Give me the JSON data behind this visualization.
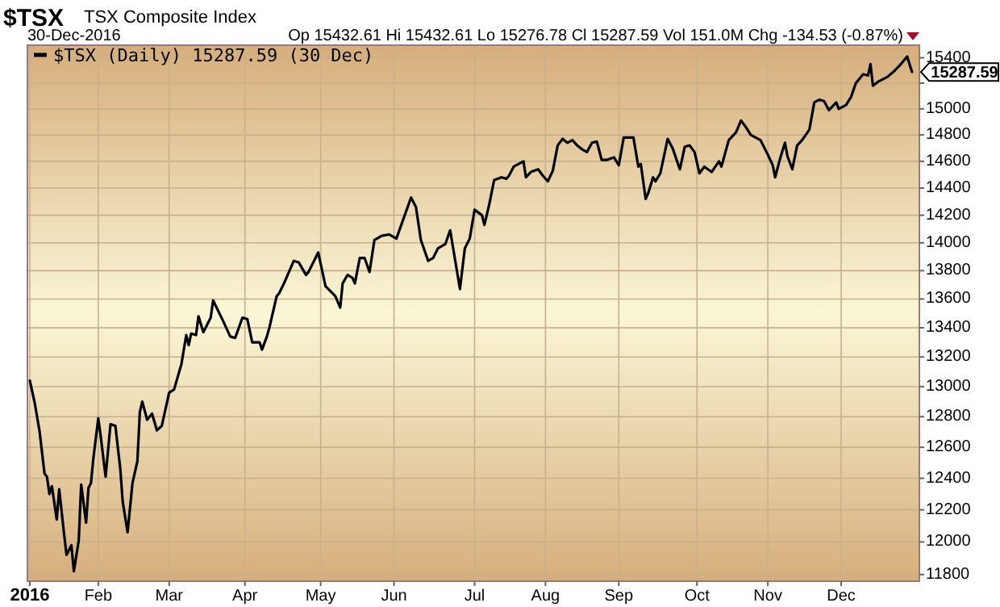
{
  "chart_data": {
    "type": "line",
    "title": "$TSX",
    "subtitle": "TSX Composite Index",
    "annotations": [
      "30-Dec-2016",
      "Op 15432.61 Hi 15432.61 Lo 15276.78 Cl 15287.59 Vol 151.0M Chg -134.53 (-0.87%)",
      {
        "text": "15287.59",
        "x": "2016-12-30",
        "y": 15287.59
      }
    ],
    "x": [
      "2016-01-04",
      "2016-01-06",
      "2016-01-08",
      "2016-01-10",
      "2016-01-11",
      "2016-01-12",
      "2016-01-13",
      "2016-01-15",
      "2016-01-16",
      "2016-01-18",
      "2016-01-19",
      "2016-01-21",
      "2016-01-22",
      "2016-01-24",
      "2016-01-25",
      "2016-01-27",
      "2016-01-28",
      "2016-01-29",
      "2016-01-30",
      "2016-02-01",
      "2016-02-02",
      "2016-02-04",
      "2016-02-06",
      "2016-02-08",
      "2016-02-10",
      "2016-02-11",
      "2016-02-13",
      "2016-02-15",
      "2016-02-17",
      "2016-02-18",
      "2016-02-19",
      "2016-02-21",
      "2016-02-23",
      "2016-02-25",
      "2016-02-27",
      "2016-03-01",
      "2016-03-03",
      "2016-03-06",
      "2016-03-08",
      "2016-03-09",
      "2016-03-10",
      "2016-03-12",
      "2016-03-13",
      "2016-03-15",
      "2016-03-18",
      "2016-03-19",
      "2016-03-23",
      "2016-03-26",
      "2016-03-28",
      "2016-03-31",
      "2016-04-02",
      "2016-04-04",
      "2016-04-07",
      "2016-04-08",
      "2016-04-10",
      "2016-04-11",
      "2016-04-14",
      "2016-04-15",
      "2016-04-17",
      "2016-04-21",
      "2016-04-23",
      "2016-04-26",
      "2016-04-27",
      "2016-05-01",
      "2016-05-04",
      "2016-05-08",
      "2016-05-10",
      "2016-05-11",
      "2016-05-13",
      "2016-05-15",
      "2016-05-16",
      "2016-05-18",
      "2016-05-20",
      "2016-05-22",
      "2016-05-24",
      "2016-05-27",
      "2016-05-30",
      "2016-06-02",
      "2016-06-05",
      "2016-06-08",
      "2016-06-10",
      "2016-06-12",
      "2016-06-15",
      "2016-06-17",
      "2016-06-19",
      "2016-06-22",
      "2016-06-24",
      "2016-06-28",
      "2016-06-30",
      "2016-07-02",
      "2016-07-04",
      "2016-07-07",
      "2016-07-08",
      "2016-07-10",
      "2016-07-12",
      "2016-07-15",
      "2016-07-17",
      "2016-07-18",
      "2016-07-20",
      "2016-07-22",
      "2016-07-24",
      "2016-07-25",
      "2016-07-27",
      "2016-07-30",
      "2016-08-01",
      "2016-08-03",
      "2016-08-05",
      "2016-08-07",
      "2016-08-09",
      "2016-08-11",
      "2016-08-13",
      "2016-08-15",
      "2016-08-17",
      "2016-08-19",
      "2016-08-21",
      "2016-08-23",
      "2016-08-25",
      "2016-08-27",
      "2016-08-30",
      "2016-09-01",
      "2016-09-03",
      "2016-09-05",
      "2016-09-07",
      "2016-09-09",
      "2016-09-10",
      "2016-09-12",
      "2016-09-13",
      "2016-09-15",
      "2016-09-16",
      "2016-09-18",
      "2016-09-21",
      "2016-09-23",
      "2016-09-26",
      "2016-09-28",
      "2016-09-30",
      "2016-10-02",
      "2016-10-04",
      "2016-10-06",
      "2016-10-09",
      "2016-10-12",
      "2016-10-13",
      "2016-10-16",
      "2016-10-19",
      "2016-10-21",
      "2016-10-23",
      "2016-10-25",
      "2016-10-27",
      "2016-10-29",
      "2016-11-01",
      "2016-11-03",
      "2016-11-04",
      "2016-11-06",
      "2016-11-08",
      "2016-11-09",
      "2016-11-11",
      "2016-11-13",
      "2016-11-15",
      "2016-11-18",
      "2016-11-20",
      "2016-11-22",
      "2016-11-24",
      "2016-11-26",
      "2016-11-29",
      "2016-11-30",
      "2016-12-03",
      "2016-12-05",
      "2016-12-07",
      "2016-12-10",
      "2016-12-12",
      "2016-12-13",
      "2016-12-14",
      "2016-12-16",
      "2016-12-20",
      "2016-12-23",
      "2016-12-25",
      "2016-12-28",
      "2016-12-30"
    ],
    "series": [
      {
        "name": "$TSX (Daily) 15287.59 (30 Dec)",
        "color": "#000000",
        "values": [
          13040,
          12890,
          12700,
          12430,
          12410,
          12300,
          12350,
          12140,
          12330,
          12050,
          11920,
          11980,
          11820,
          12010,
          12360,
          12120,
          12340,
          12370,
          12530,
          12790,
          12670,
          12410,
          12750,
          12740,
          12460,
          12250,
          12060,
          12370,
          12510,
          12830,
          12900,
          12780,
          12820,
          12710,
          12740,
          12960,
          12980,
          13150,
          13350,
          13280,
          13360,
          13350,
          13480,
          13370,
          13470,
          13590,
          13450,
          13340,
          13330,
          13470,
          13460,
          13300,
          13300,
          13250,
          13340,
          13400,
          13620,
          13640,
          13710,
          13870,
          13860,
          13770,
          13790,
          13930,
          13690,
          13620,
          13540,
          13710,
          13770,
          13750,
          13710,
          13890,
          13890,
          13790,
          14020,
          14050,
          14060,
          14030,
          14180,
          14330,
          14260,
          14020,
          13870,
          13890,
          13960,
          13990,
          14090,
          13670,
          13960,
          14030,
          14240,
          14200,
          14130,
          14280,
          14460,
          14480,
          14470,
          14490,
          14560,
          14580,
          14600,
          14480,
          14520,
          14540,
          14490,
          14450,
          14530,
          14720,
          14770,
          14740,
          14760,
          14720,
          14690,
          14670,
          14740,
          14750,
          14610,
          14610,
          14630,
          14570,
          14780,
          14780,
          14780,
          14560,
          14580,
          14320,
          14360,
          14480,
          14450,
          14510,
          14770,
          14700,
          14540,
          14710,
          14720,
          14670,
          14510,
          14560,
          14520,
          14600,
          14560,
          14760,
          14820,
          14910,
          14860,
          14800,
          14780,
          14760,
          14650,
          14570,
          14480,
          14620,
          14740,
          14640,
          14540,
          14720,
          14760,
          14840,
          15050,
          15070,
          15060,
          14990,
          15050,
          15000,
          15030,
          15090,
          15200,
          15270,
          15260,
          15350,
          15180,
          15210,
          15250,
          15300,
          15340,
          15410,
          15287.59
        ]
      }
    ],
    "xlim": [
      "2016-01-03",
      "2017-01-02"
    ],
    "xticks": [
      {
        "value": "2016-01-04",
        "label": "2016"
      },
      {
        "value": "2016-02-01",
        "label": "Feb"
      },
      {
        "value": "2016-03-01",
        "label": "Mar"
      },
      {
        "value": "2016-04-01",
        "label": "Apr"
      },
      {
        "value": "2016-05-02",
        "label": "May"
      },
      {
        "value": "2016-06-01",
        "label": "Jun"
      },
      {
        "value": "2016-07-04",
        "label": "Jul"
      },
      {
        "value": "2016-08-02",
        "label": "Aug"
      },
      {
        "value": "2016-09-01",
        "label": "Sep"
      },
      {
        "value": "2016-10-03",
        "label": "Oct"
      },
      {
        "value": "2016-11-01",
        "label": "Nov"
      },
      {
        "value": "2016-12-01",
        "label": "Dec"
      }
    ],
    "ylim": [
      11760,
      15500
    ],
    "yticks": [
      11800,
      12000,
      12200,
      12400,
      12600,
      12800,
      13000,
      13200,
      13400,
      13600,
      13800,
      14000,
      14200,
      14400,
      14600,
      14800,
      15000,
      {
        "value": 15200,
        "label": null
      },
      15400
    ],
    "log": true,
    "grid": true,
    "legend": "top left",
    "line_style": "solid"
  }
}
